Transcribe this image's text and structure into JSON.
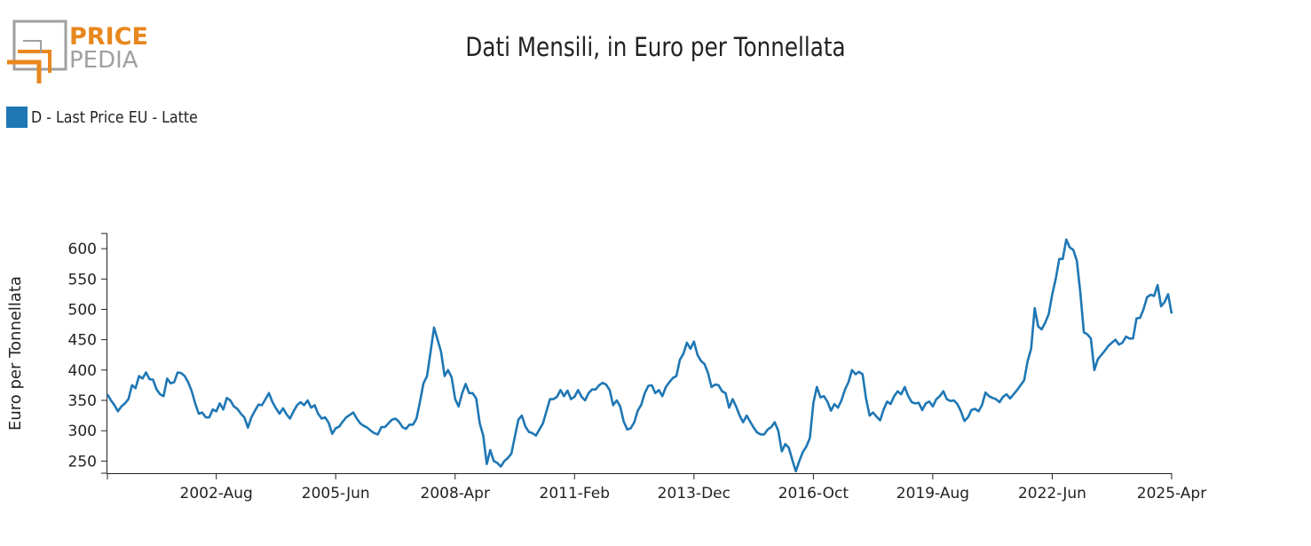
{
  "logo": {
    "line1": "PRICE",
    "line2": "PEDIA"
  },
  "title": "Dati Mensili, in Euro per Tonnellata",
  "colors": {
    "series": "#1f77b4",
    "logo_orange": "#e8871e",
    "logo_gray": "#a0a0a0"
  },
  "chart_data": {
    "type": "line",
    "title": "Dati Mensili, in Euro per Tonnellata",
    "xlabel": "",
    "ylabel": "Euro per Tonnellata",
    "ylim": [
      230,
      625
    ],
    "yticks": [
      250,
      300,
      350,
      400,
      450,
      500,
      550,
      600
    ],
    "x_start": "2000-Jan",
    "x_end": "2025-Apr",
    "xtick_labels": [
      "2002-Aug",
      "2005-Jun",
      "2008-Apr",
      "2011-Feb",
      "2013-Dec",
      "2016-Oct",
      "2019-Aug",
      "2022-Jun",
      "2025-Apr"
    ],
    "xtick_months": [
      31,
      65,
      99,
      133,
      167,
      201,
      235,
      269,
      303
    ],
    "grid": false,
    "legend_position": "top-left",
    "series": [
      {
        "name": "D - Last Price EU - Latte",
        "color": "#1f77b4",
        "values": [
          360,
          350,
          342,
          332,
          340,
          345,
          352,
          375,
          370,
          390,
          386,
          396,
          385,
          384,
          368,
          360,
          357,
          386,
          378,
          380,
          396,
          395,
          390,
          380,
          365,
          345,
          328,
          330,
          322,
          322,
          335,
          332,
          345,
          335,
          354,
          350,
          340,
          336,
          328,
          322,
          305,
          322,
          333,
          343,
          342,
          352,
          362,
          347,
          337,
          328,
          337,
          327,
          320,
          332,
          342,
          347,
          342,
          350,
          338,
          342,
          328,
          320,
          322,
          313,
          295,
          304,
          307,
          315,
          322,
          326,
          330,
          320,
          312,
          308,
          305,
          300,
          296,
          294,
          306,
          306,
          312,
          318,
          320,
          315,
          306,
          303,
          310,
          310,
          320,
          348,
          378,
          390,
          430,
          470,
          450,
          430,
          390,
          400,
          388,
          352,
          340,
          362,
          377,
          362,
          362,
          353,
          312,
          292,
          245,
          268,
          250,
          247,
          241,
          250,
          255,
          262,
          290,
          318,
          325,
          307,
          298,
          296,
          292,
          302,
          312,
          332,
          352,
          352,
          356,
          367,
          357,
          366,
          352,
          356,
          367,
          356,
          350,
          362,
          368,
          368,
          375,
          379,
          376,
          367,
          342,
          350,
          340,
          315,
          302,
          304,
          314,
          333,
          343,
          362,
          374,
          375,
          362,
          367,
          357,
          372,
          380,
          387,
          390,
          417,
          427,
          445,
          435,
          447,
          425,
          415,
          410,
          395,
          372,
          376,
          375,
          365,
          362,
          338,
          352,
          340,
          325,
          314,
          325,
          315,
          305,
          297,
          294,
          294,
          302,
          306,
          314,
          300,
          266,
          278,
          272,
          252,
          233,
          250,
          265,
          274,
          288,
          346,
          372,
          355,
          357,
          348,
          333,
          344,
          338,
          350,
          368,
          380,
          400,
          393,
          397,
          393,
          353,
          325,
          330,
          323,
          317,
          335,
          348,
          344,
          357,
          365,
          360,
          372,
          357,
          347,
          345,
          346,
          334,
          345,
          348,
          340,
          352,
          357,
          365,
          352,
          349,
          350,
          344,
          332,
          316,
          322,
          334,
          336,
          332,
          342,
          363,
          357,
          354,
          352,
          347,
          356,
          360,
          353,
          360,
          367,
          375,
          383,
          415,
          435,
          502,
          472,
          467,
          478,
          492,
          525,
          550,
          583,
          583,
          615,
          602,
          598,
          580,
          528,
          462,
          459,
          452,
          400,
          418,
          425,
          432,
          440,
          445,
          450,
          442,
          445,
          455,
          452,
          452,
          485,
          486,
          500,
          520,
          524,
          522,
          540,
          505,
          512,
          525,
          493
        ]
      }
    ]
  }
}
